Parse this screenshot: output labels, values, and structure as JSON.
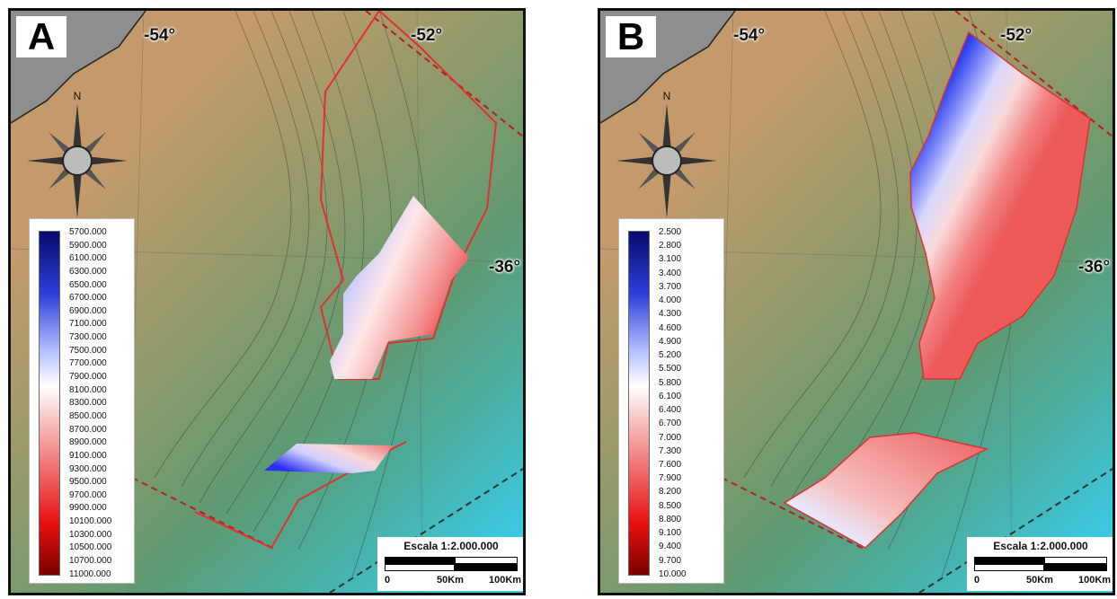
{
  "panels": [
    {
      "label": "A",
      "coords": {
        "lon_left": "-54°",
        "lon_right": "-52°",
        "lat": "-36°"
      },
      "compass": {
        "north_label": "N",
        "icon": "compass-rose-icon"
      },
      "legend": {
        "values": [
          "5700.000",
          "5900.000",
          "6100.000",
          "6300.000",
          "6500.000",
          "6700.000",
          "6900.000",
          "7100.000",
          "7300.000",
          "7500.000",
          "7700.000",
          "7900.000",
          "8100.000",
          "8300.000",
          "8500.000",
          "8700.000",
          "8900.000",
          "9100.000",
          "9300.000",
          "9500.000",
          "9700.000",
          "9900.000",
          "10100.000",
          "10300.000",
          "10500.000",
          "10700.000",
          "11000.000"
        ],
        "colors": [
          "#0a0a6e",
          "#2a3fd8",
          "#ffffff",
          "#f08080",
          "#e81010",
          "#7a0000"
        ]
      },
      "scale": {
        "title": "Escala 1:2.000.000",
        "ticks": [
          "0",
          "50Km",
          "100Km"
        ]
      }
    },
    {
      "label": "B",
      "coords": {
        "lon_left": "-54°",
        "lon_right": "-52°",
        "lat": "-36°"
      },
      "compass": {
        "north_label": "N",
        "icon": "compass-rose-icon"
      },
      "legend": {
        "values": [
          "2.500",
          "2.800",
          "3.100",
          "3.400",
          "3.700",
          "4.000",
          "4.300",
          "4.600",
          "4.900",
          "5.200",
          "5.500",
          "5.800",
          "6.100",
          "6.400",
          "6.700",
          "7.000",
          "7.300",
          "7.600",
          "7.900",
          "8.200",
          "8.500",
          "8.800",
          "9.100",
          "9.400",
          "9.700",
          "10.000"
        ],
        "colors": [
          "#0a0a6e",
          "#2a3fd8",
          "#ffffff",
          "#f08080",
          "#e81010",
          "#7a0000"
        ]
      },
      "scale": {
        "title": "Escala 1:2.000.000",
        "ticks": [
          "0",
          "50Km",
          "100Km"
        ]
      }
    }
  ],
  "colors": {
    "land": "#c49a6c",
    "shelf": "#8c9a6a",
    "slope": "#5f9a72",
    "deep": "#3cc8e0",
    "boundary": "#e03030",
    "track": "#333333"
  }
}
